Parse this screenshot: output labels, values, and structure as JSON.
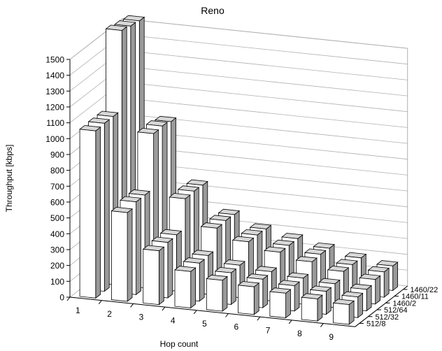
{
  "chart_data": {
    "type": "bar",
    "title": "Reno",
    "xlabel": "Hop count",
    "ylabel": "Throughput [kbps]",
    "ylim": [
      0,
      1500
    ],
    "yticks": [
      "0",
      "100",
      "200",
      "300",
      "400",
      "500",
      "600",
      "700",
      "800",
      "900",
      "1000",
      "1100",
      "1200",
      "1300",
      "1400",
      "1500"
    ],
    "categories": [
      "1",
      "2",
      "3",
      "4",
      "5",
      "6",
      "7",
      "8",
      "9"
    ],
    "grid": true,
    "series": [
      {
        "name": "512/8",
        "values": [
          1055,
          560,
          340,
          230,
          195,
          175,
          155,
          140,
          125
        ]
      },
      {
        "name": "512/32",
        "values": [
          1060,
          585,
          350,
          240,
          200,
          180,
          160,
          145,
          130
        ]
      },
      {
        "name": "512/64",
        "values": [
          1060,
          585,
          355,
          245,
          205,
          185,
          165,
          150,
          135
        ]
      },
      {
        "name": "1460/2",
        "values": [
          1560,
          930,
          540,
          375,
          310,
          265,
          225,
          185,
          155
        ]
      },
      {
        "name": "1460/11",
        "values": [
          1545,
          935,
          545,
          380,
          310,
          265,
          230,
          185,
          160
        ]
      },
      {
        "name": "1460/22",
        "values": [
          1535,
          920,
          540,
          375,
          305,
          265,
          225,
          185,
          155
        ]
      }
    ],
    "colors": {
      "bar_front": "#ffffff",
      "bar_side": "#9a9a9a",
      "bar_top": "#d8d8d8",
      "grid": "#b0b0b0",
      "axis": "#000000"
    }
  }
}
